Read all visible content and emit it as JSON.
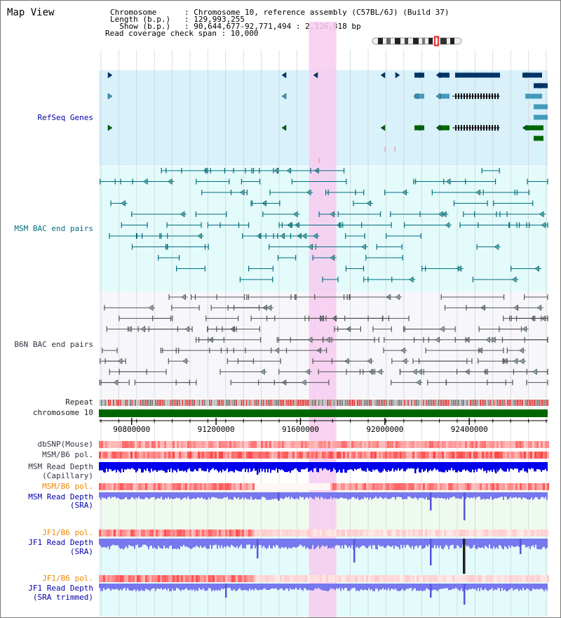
{
  "page_title": "Map View",
  "info": {
    "line1": "Chromosome      : Chromosome 10, reference assembly (C57BL/6J) (Build 37)",
    "line2": "Length (b.p.)   : 129,993,255",
    "line3": "  Show (b.p.)   : 90,644,677-92,771,494 : 2,126,818 bp",
    "line4": "Read coverage check span : 10,000"
  },
  "tracks": {
    "refseq": "RefSeq Genes",
    "msm_bac": "MSM BAC end pairs",
    "b6n_bac": "B6N BAC end pairs",
    "repeat": "Repeat",
    "chromosome": "chromosome 10",
    "dbsnp": "dbSNP(Mouse)",
    "msm_b6_pol_1": "MSM/B6 pol.",
    "msm_read_depth_cap_1": "MSM Read Depth",
    "msm_read_depth_cap_2": "(Capillary)",
    "msm_b6_pol_2": "MSM/B6 pol.",
    "msm_read_depth_sra_1": "MSM Read Depth",
    "msm_read_depth_sra_2": "(SRA)",
    "jf1_b6_pol_1": "JF1/B6 pol.",
    "jf1_read_depth_sra_1": "JF1 Read Depth",
    "jf1_read_depth_sra_2": "(SRA)",
    "jf1_b6_pol_2": "JF1/B6 pol.",
    "jf1_read_depth_trim_1": "JF1 Read Depth",
    "jf1_read_depth_trim_2": "(SRA trimmed)"
  },
  "axis": {
    "range": [
      90644677,
      92771494
    ],
    "ticks": [
      "90800000",
      "91200000",
      "91600000",
      "92000000",
      "92400000"
    ],
    "highlight_range": [
      91640000,
      91770000
    ]
  },
  "colors": {
    "refseq_dark": "#003366",
    "refseq_mid": "#4499bb",
    "refseq_green": "#006600",
    "msm_bac": "#006c80",
    "b6n_bac": "#555555",
    "chromosome": "#006600",
    "highlight": "#f7cbf0",
    "depth_blue": "#0000ee",
    "depth_light": "#7777ee"
  }
}
